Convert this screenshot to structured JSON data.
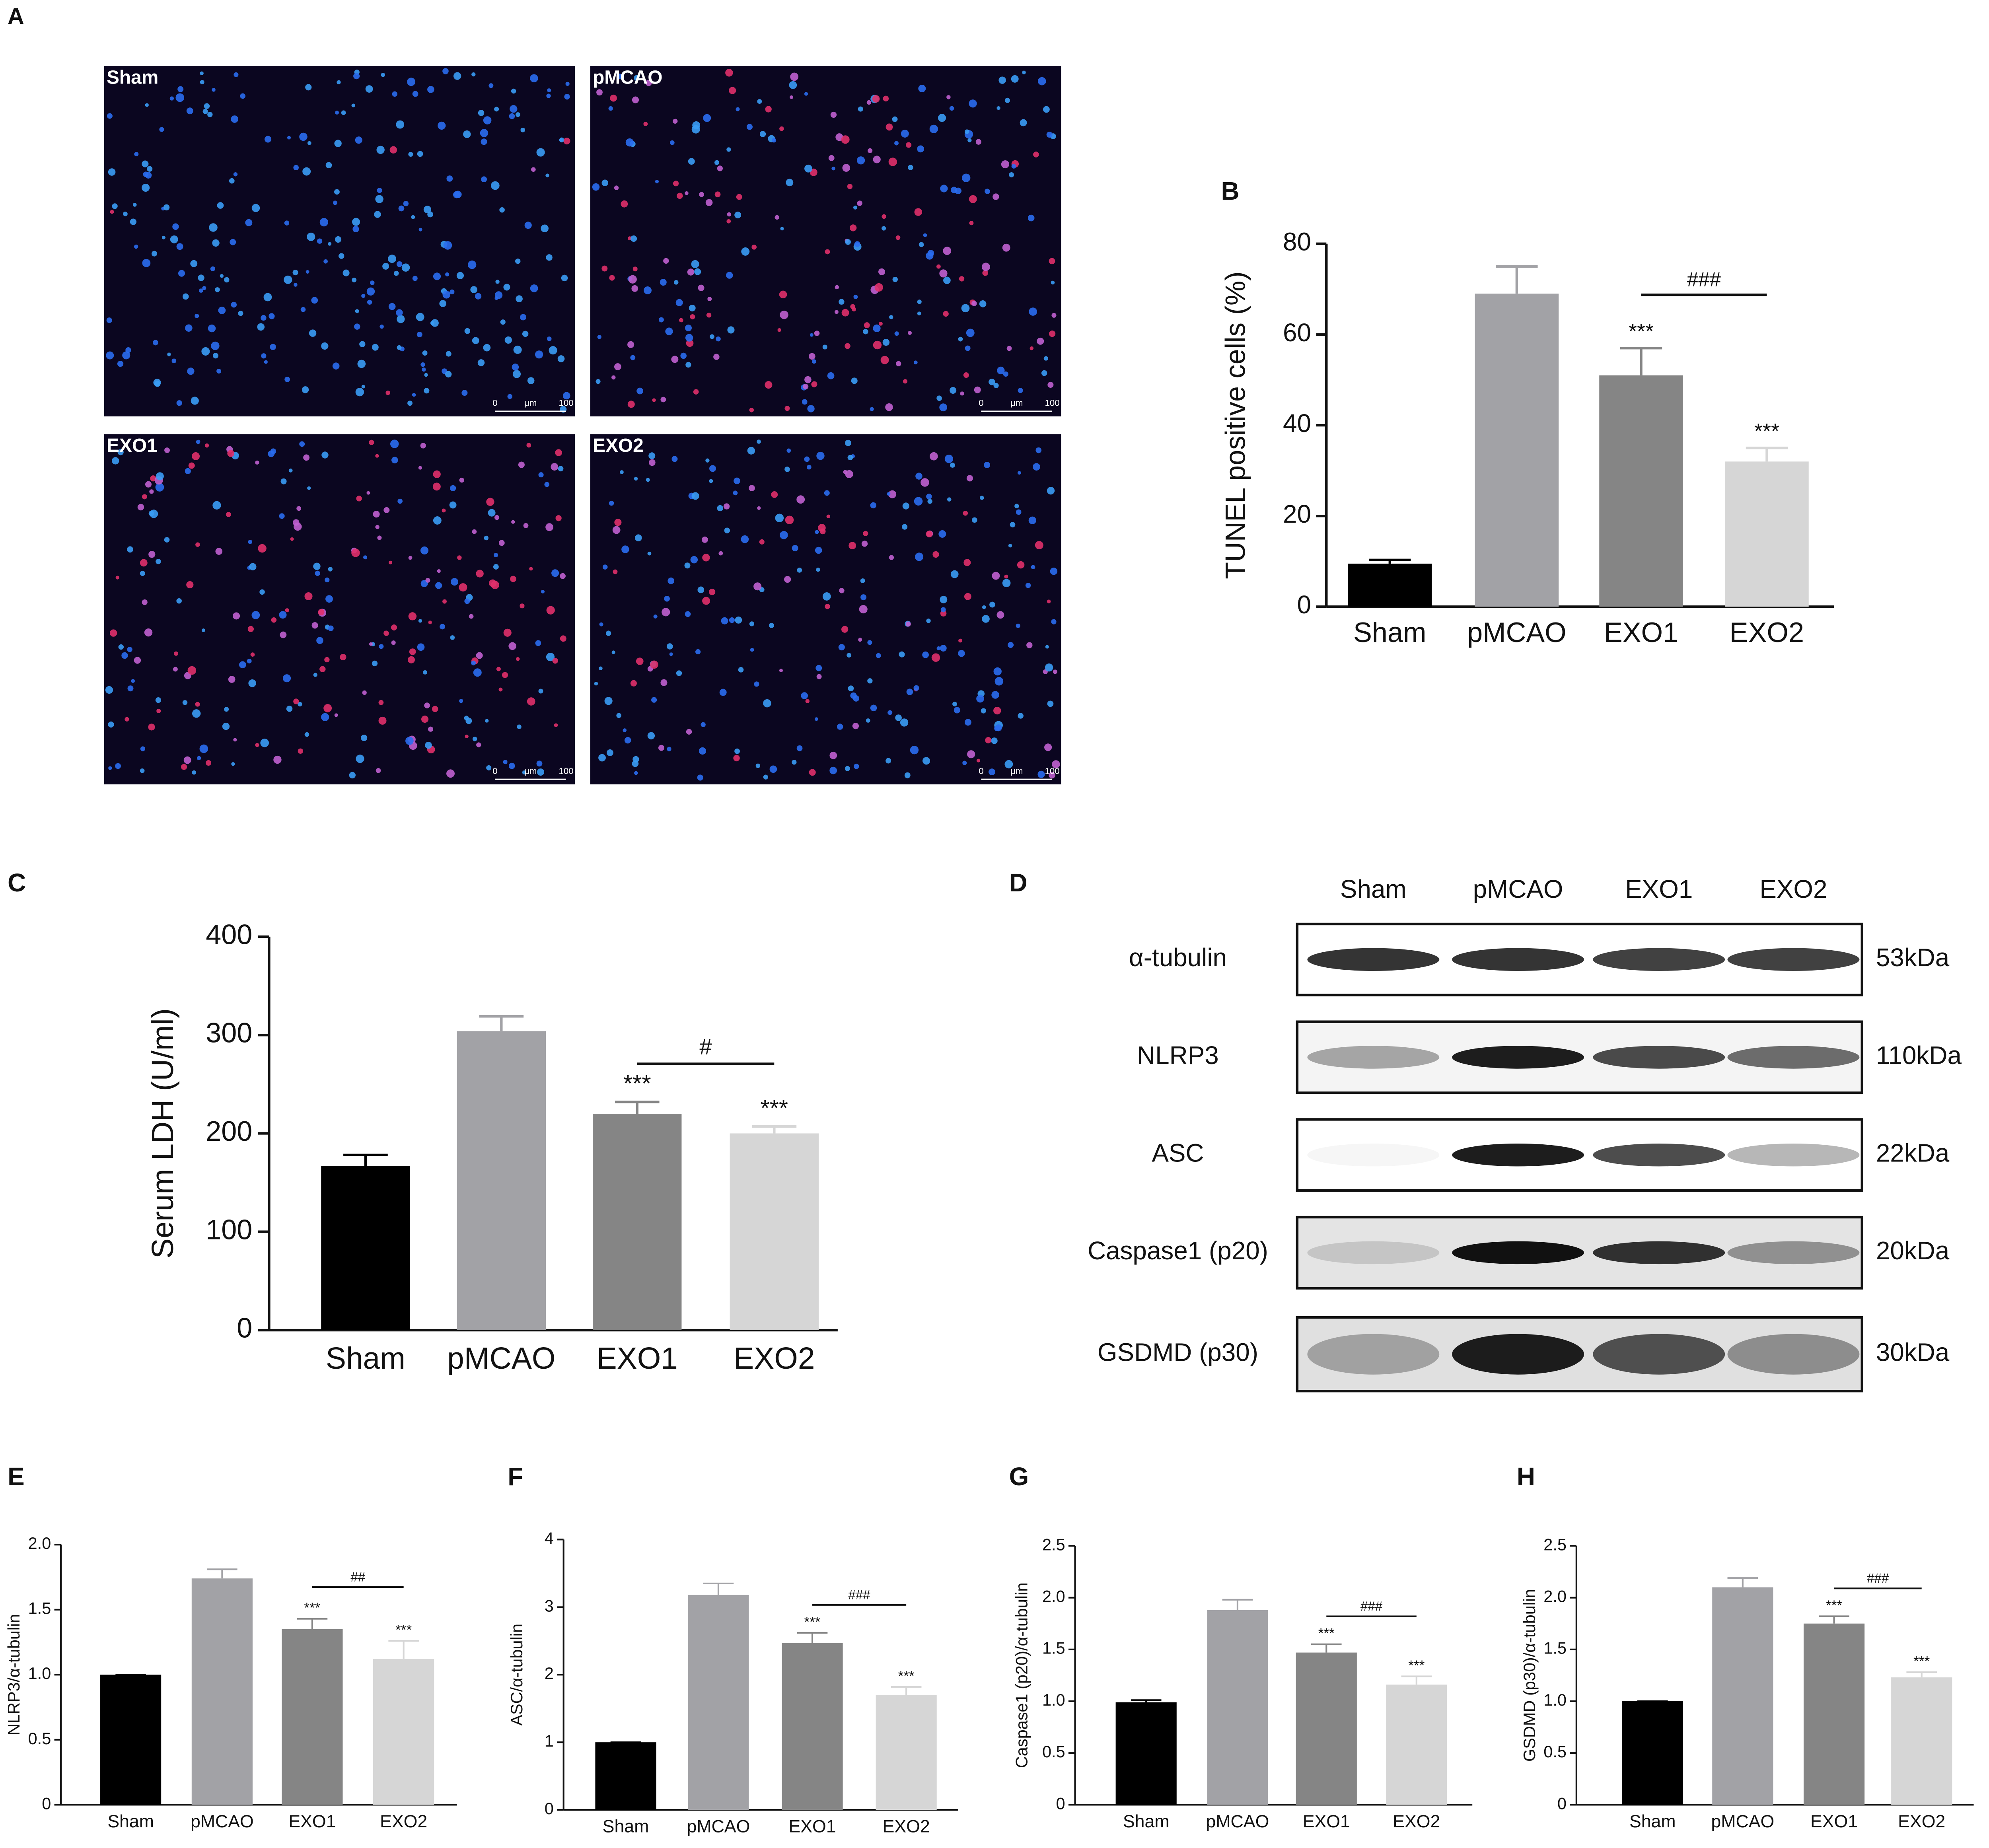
{
  "panel_a": {
    "label": "A",
    "images": [
      {
        "label": "Sham"
      },
      {
        "label": "pMCAO"
      },
      {
        "label": "EXO1"
      },
      {
        "label": "EXO2"
      }
    ],
    "scale_bar": {
      "start": "0",
      "unit": "μm",
      "end": "100"
    }
  },
  "panel_d": {
    "label": "D",
    "lanes": [
      "Sham",
      "pMCAO",
      "EXO1",
      "EXO2"
    ],
    "proteins": [
      {
        "name": "α-tubulin",
        "size": "53kDa"
      },
      {
        "name": "NLRP3",
        "size": "110kDa"
      },
      {
        "name": "ASC",
        "size": "22kDa"
      },
      {
        "name": "Caspase1 (p20)",
        "size": "20kDa"
      },
      {
        "name": "GSDMD (p30)",
        "size": "30kDa"
      }
    ]
  },
  "chart_data": [
    {
      "type": "bar",
      "panel": "B",
      "ylabel": "TUNEL positive cells (%)",
      "categories": [
        "Sham",
        "pMCAO",
        "EXO1",
        "EXO2"
      ],
      "values": [
        9.5,
        69,
        51,
        32
      ],
      "errors": [
        0.8,
        6,
        6,
        3
      ],
      "colors": [
        "#000000",
        "#a2a2a6",
        "#858585",
        "#d6d6d6"
      ],
      "significance": [
        null,
        null,
        "***",
        "***"
      ],
      "bracket_label": "###",
      "ylim": [
        0,
        80
      ],
      "yticks": [
        0,
        20,
        40,
        60,
        80
      ]
    },
    {
      "type": "bar",
      "panel": "C",
      "ylabel": "Serum LDH (U/ml)",
      "categories": [
        "Sham",
        "pMCAO",
        "EXO1",
        "EXO2"
      ],
      "values": [
        167,
        304,
        220,
        200
      ],
      "errors": [
        11,
        15,
        12,
        7
      ],
      "colors": [
        "#000000",
        "#a2a2a6",
        "#858585",
        "#d6d6d6"
      ],
      "significance": [
        null,
        null,
        "***",
        "***"
      ],
      "bracket_label": "#",
      "ylim": [
        0,
        400
      ],
      "yticks": [
        0,
        100,
        200,
        300,
        400
      ]
    },
    {
      "type": "bar",
      "panel": "E",
      "ylabel": "NLRP3/α-tubulin",
      "categories": [
        "Sham",
        "pMCAO",
        "EXO1",
        "EXO2"
      ],
      "values": [
        1.0,
        1.74,
        1.35,
        1.12
      ],
      "errors": [
        0,
        0.07,
        0.08,
        0.14
      ],
      "colors": [
        "#000000",
        "#a2a2a6",
        "#858585",
        "#d6d6d6"
      ],
      "significance": [
        null,
        null,
        "***",
        "***"
      ],
      "bracket_label": "##",
      "ylim": [
        0,
        2
      ],
      "yticks": [
        0,
        0.5,
        {
          "value": 1,
          "label": "1.0"
        },
        1.5,
        {
          "value": 2,
          "label": "2.0"
        }
      ]
    },
    {
      "type": "bar",
      "panel": "F",
      "ylabel": "ASC/α-tubulin",
      "categories": [
        "Sham",
        "pMCAO",
        "EXO1",
        "EXO2"
      ],
      "values": [
        1.0,
        3.18,
        2.47,
        1.7
      ],
      "errors": [
        0,
        0.17,
        0.15,
        0.12
      ],
      "colors": [
        "#000000",
        "#a2a2a6",
        "#858585",
        "#d6d6d6"
      ],
      "significance": [
        null,
        null,
        "***",
        "***"
      ],
      "bracket_label": "###",
      "ylim": [
        0,
        4
      ],
      "yticks": [
        0,
        1,
        2,
        3,
        4
      ]
    },
    {
      "type": "bar",
      "panel": "G",
      "ylabel": "Caspase1 (p20)/α-tubulin",
      "categories": [
        "Sham",
        "pMCAO",
        "EXO1",
        "EXO2"
      ],
      "values": [
        0.99,
        1.88,
        1.47,
        1.16
      ],
      "errors": [
        0.02,
        0.1,
        0.08,
        0.08
      ],
      "colors": [
        "#000000",
        "#a2a2a6",
        "#858585",
        "#d6d6d6"
      ],
      "significance": [
        null,
        null,
        "***",
        "***"
      ],
      "bracket_label": "###",
      "ylim": [
        0,
        2.5
      ],
      "yticks": [
        0,
        0.5,
        {
          "value": 1,
          "label": "1.0"
        },
        1.5,
        {
          "value": 2,
          "label": "2.0"
        },
        2.5
      ]
    },
    {
      "type": "bar",
      "panel": "H",
      "ylabel": "GSDMD (p30)/α-tubulin",
      "categories": [
        "Sham",
        "pMCAO",
        "EXO1",
        "EXO2"
      ],
      "values": [
        1.0,
        2.1,
        1.75,
        1.23
      ],
      "errors": [
        0,
        0.09,
        0.07,
        0.05
      ],
      "colors": [
        "#000000",
        "#a2a2a6",
        "#858585",
        "#d6d6d6"
      ],
      "significance": [
        null,
        null,
        "***",
        "***"
      ],
      "bracket_label": "###",
      "ylim": [
        0,
        2.5
      ],
      "yticks": [
        0,
        0.5,
        {
          "value": 1,
          "label": "1.0"
        },
        1.5,
        {
          "value": 2,
          "label": "2.0"
        },
        2.5
      ]
    }
  ]
}
